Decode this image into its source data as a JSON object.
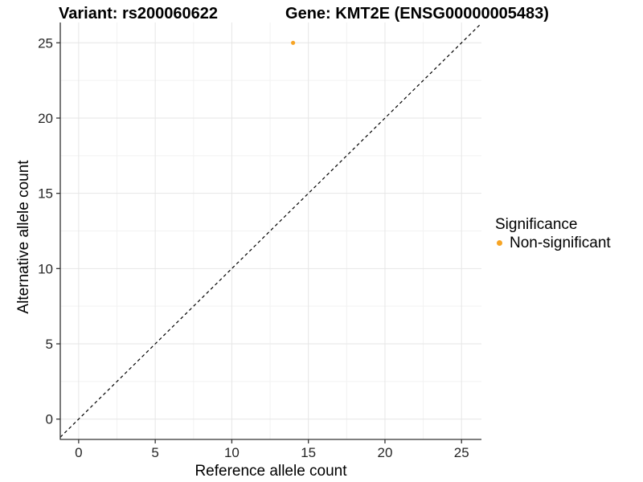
{
  "titles": {
    "variant": "Variant: rs200060622",
    "gene": "Gene: KMT2E (ENSG00000005483)"
  },
  "axes": {
    "x_label": "Reference allele count",
    "y_label": "Alternative allele count"
  },
  "legend": {
    "title": "Significance",
    "items": [
      {
        "label": "Non-significant",
        "color": "#F7A424"
      }
    ]
  },
  "colors": {
    "point": "#F7A424",
    "grid_major": "#E6E6E6",
    "grid_minor": "#F2F2F2",
    "axis_line": "#333333",
    "tick_label": "#262626",
    "identity_line": "#000000",
    "background": "#FFFFFF"
  },
  "chart_data": {
    "type": "scatter",
    "title": "Variant: rs200060622   Gene: KMT2E (ENSG00000005483)",
    "xlabel": "Reference allele count",
    "ylabel": "Alternative allele count",
    "xlim": [
      -1.2,
      26.3
    ],
    "ylim": [
      -1.35,
      26.35
    ],
    "x_ticks": [
      0,
      5,
      10,
      15,
      20,
      25
    ],
    "y_ticks": [
      0,
      5,
      10,
      15,
      20,
      25
    ],
    "x_minor_ticks": [
      2.5,
      7.5,
      12.5,
      17.5,
      22.5
    ],
    "y_minor_ticks": [
      2.5,
      7.5,
      12.5,
      17.5,
      22.5
    ],
    "grid": "major+minor",
    "legend_position": "right",
    "series": [
      {
        "name": "Non-significant",
        "color": "#F7A424",
        "points": [
          {
            "x": 14,
            "y": 25
          }
        ]
      }
    ],
    "reference_line": {
      "type": "identity",
      "style": "dashed",
      "color": "#000000"
    }
  }
}
